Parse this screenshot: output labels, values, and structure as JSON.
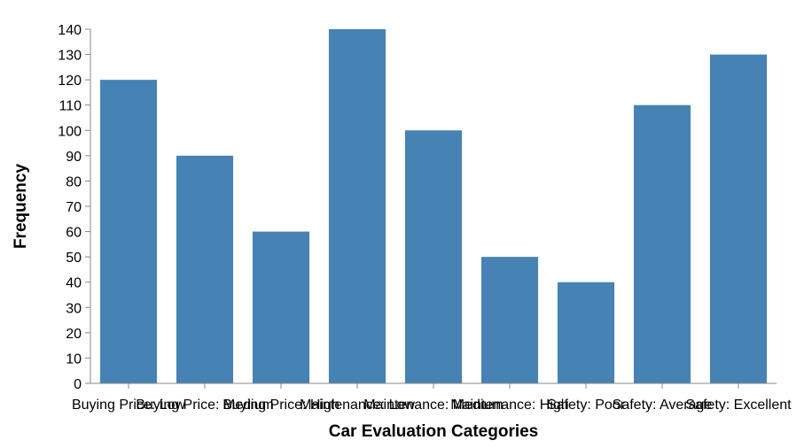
{
  "chart_data": {
    "type": "bar",
    "categories": [
      "Buying Price: Low",
      "Buying Price: Medium",
      "Buying Price: High",
      "Maintenance: Low",
      "Maintenance: Medium",
      "Maintenance: High",
      "Safety: Poor",
      "Safety: Average",
      "Safety: Excellent"
    ],
    "values": [
      120,
      90,
      60,
      140,
      100,
      50,
      40,
      110,
      130
    ],
    "xlabel": "Car Evaluation Categories",
    "ylabel": "Frequency",
    "ylim": [
      0,
      140
    ],
    "yticks": [
      0,
      10,
      20,
      30,
      40,
      50,
      60,
      70,
      80,
      90,
      100,
      110,
      120,
      130,
      140
    ],
    "bar_color": "#4682b4",
    "grid": false
  }
}
